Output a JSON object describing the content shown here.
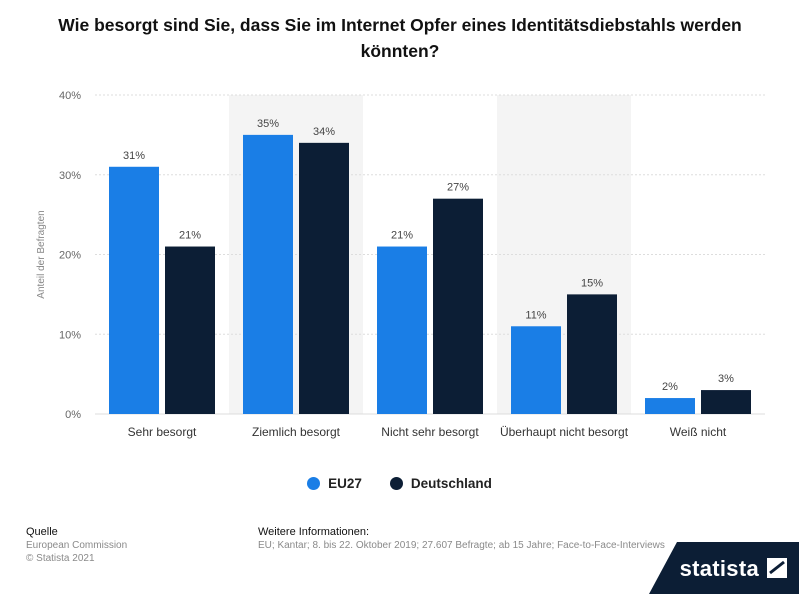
{
  "colors": {
    "eu27": "#1a7ee6",
    "deutschland": "#0c1e35",
    "band": "#f4f4f4",
    "grid": "#dddddd",
    "brand_bg": "#0c1e35"
  },
  "legend": {
    "items": [
      {
        "label": "EU27"
      },
      {
        "label": "Deutschland"
      }
    ]
  },
  "footer": {
    "source_heading": "Quelle",
    "source_name": "European Commission",
    "copyright": "© Statista 2021",
    "info_heading": "Weitere Informationen:",
    "info_text": "EU; Kantar; 8. bis 22. Oktober 2019; 27.607 Befragte; ab 15 Jahre; Face-to-Face-Interviews"
  },
  "brand": {
    "name": "statista"
  },
  "chart_data": {
    "type": "bar",
    "title": "Wie besorgt sind Sie, dass Sie im Internet Opfer eines Identitätsdiebstahls werden könnten?",
    "xlabel": "",
    "ylabel": "Anteil der Befragten",
    "ylim": [
      0,
      40
    ],
    "yticks": [
      "0%",
      "10%",
      "20%",
      "30%",
      "40%"
    ],
    "grid": true,
    "legend_position": "bottom",
    "categories": [
      "Sehr besorgt",
      "Ziemlich besorgt",
      "Nicht sehr besorgt",
      "Überhaupt nicht besorgt",
      "Weiß nicht"
    ],
    "series": [
      {
        "name": "EU27",
        "values": [
          31,
          35,
          21,
          11,
          2
        ],
        "labels": [
          "31%",
          "35%",
          "21%",
          "11%",
          "2%"
        ]
      },
      {
        "name": "Deutschland",
        "values": [
          21,
          34,
          27,
          15,
          3
        ],
        "labels": [
          "21%",
          "34%",
          "27%",
          "15%",
          "3%"
        ]
      }
    ]
  }
}
